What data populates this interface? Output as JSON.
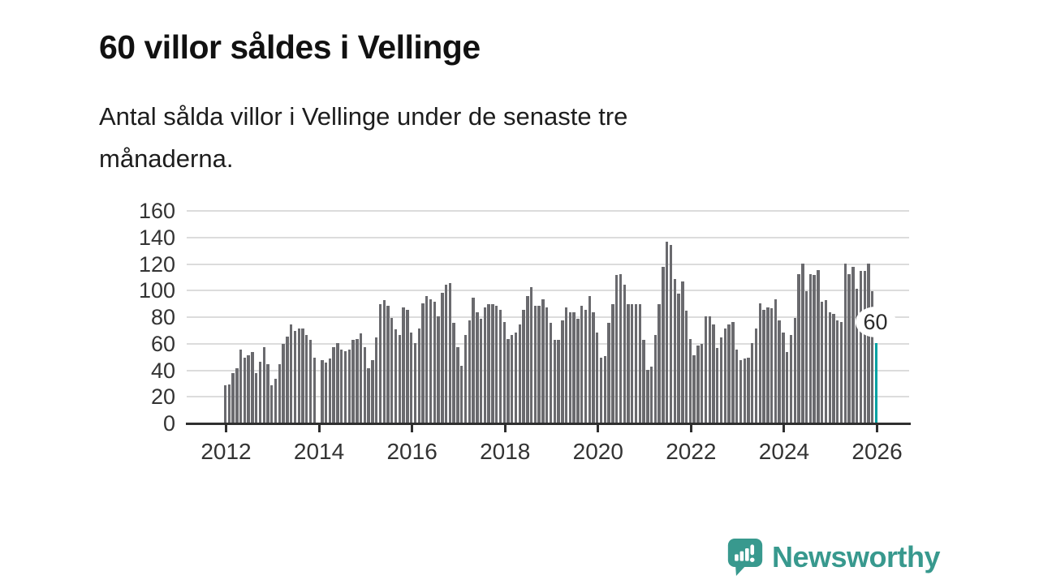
{
  "header": {
    "title": "60 villor såldes i Vellinge",
    "subtitle": "Antal sålda villor i Vellinge under de senaste tre\nmånaderna."
  },
  "chart_data": {
    "type": "bar",
    "title": "Antal sålda villor i Vellinge under de senaste tre månaderna",
    "frequency": "monthly",
    "start_period": "2012-01",
    "end_period": "2026-01",
    "missing_value_index": 24,
    "x_tick_labels": [
      "2012",
      "2014",
      "2016",
      "2018",
      "2020",
      "2022",
      "2024",
      "2026"
    ],
    "y_ticks": [
      0,
      20,
      40,
      60,
      80,
      100,
      120,
      140,
      160
    ],
    "ylim": [
      0,
      160
    ],
    "grid": "horizontal",
    "values": [
      28,
      29,
      37,
      41,
      55,
      49,
      51,
      53,
      37,
      46,
      57,
      44,
      28,
      33,
      44,
      59,
      65,
      74,
      69,
      71,
      71,
      66,
      62,
      49,
      null,
      47,
      45,
      48,
      57,
      60,
      55,
      54,
      55,
      62,
      63,
      67,
      57,
      41,
      47,
      64,
      89,
      92,
      88,
      79,
      70,
      66,
      87,
      85,
      68,
      60,
      71,
      90,
      95,
      93,
      91,
      80,
      98,
      104,
      105,
      75,
      57,
      43,
      66,
      77,
      94,
      83,
      78,
      87,
      89,
      89,
      88,
      85,
      76,
      63,
      66,
      68,
      74,
      85,
      95,
      102,
      88,
      88,
      93,
      87,
      75,
      62,
      62,
      77,
      87,
      83,
      83,
      78,
      88,
      85,
      95,
      83,
      68,
      49,
      50,
      75,
      89,
      111,
      112,
      104,
      89,
      89,
      89,
      89,
      62,
      40,
      42,
      66,
      89,
      117,
      136,
      134,
      108,
      97,
      106,
      84,
      63,
      51,
      58,
      59,
      80,
      80,
      74,
      56,
      64,
      71,
      74,
      76,
      55,
      47,
      48,
      49,
      60,
      71,
      90,
      85,
      87,
      86,
      93,
      77,
      68,
      53,
      66,
      79,
      112,
      120,
      99,
      112,
      111,
      115,
      91,
      92,
      83,
      82,
      77,
      76,
      120,
      112,
      117,
      101,
      114,
      114,
      120,
      99,
      60
    ],
    "highlight_index": 168,
    "highlight_label": "60",
    "bar_color": "#6a6a6e",
    "highlight_color": "#00a1a2",
    "axis_color": "#2f2f2f",
    "gridline_color": "#dcdcdc"
  },
  "branding": {
    "logo_text": "Newsworthy",
    "logo_color": "#38998e",
    "logo_icon": "speech-bubble-bar-chart-icon"
  }
}
